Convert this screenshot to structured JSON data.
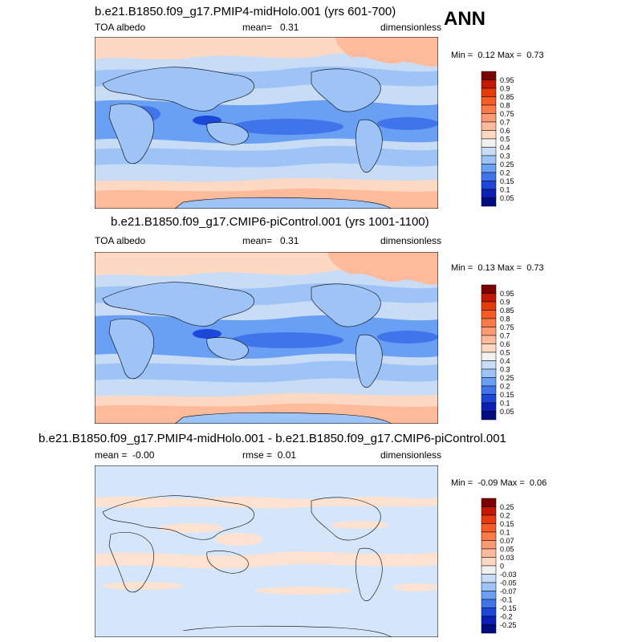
{
  "season": "ANN",
  "panels": [
    {
      "title": "b.e21.B1850.f09_g17.PMIP4-midHolo.001 (yrs 601-700)",
      "left_label": "TOA albedo",
      "mid_label": "mean=",
      "mid_value": "0.31",
      "right_label": "dimensionless",
      "min_label": "Min =",
      "min_value": "0.12",
      "max_label": "Max =",
      "max_value": "0.73",
      "colorbar": {
        "labels": [
          "0.95",
          "0.9",
          "0.85",
          "0.8",
          "0.75",
          "0.7",
          "0.6",
          "0.5",
          "0.4",
          "0.3",
          "0.25",
          "0.2",
          "0.15",
          "0.1",
          "0.05"
        ],
        "colors": [
          "#7a0000",
          "#c21800",
          "#e53a0b",
          "#f65a25",
          "#fb7a4a",
          "#fc9a74",
          "#fdbb9c",
          "#fdd8c2",
          "#f1f1f1",
          "#c9dcf6",
          "#9ec3f7",
          "#6aa0f3",
          "#3f74ea",
          "#1d47d9",
          "#0b20b4",
          "#000d80"
        ]
      }
    },
    {
      "title": "b.e21.B1850.f09_g17.CMIP6-piControl.001 (yrs 1001-1100)",
      "left_label": "TOA albedo",
      "mid_label": "mean=",
      "mid_value": "0.31",
      "right_label": "dimensionless",
      "min_label": "Min =",
      "min_value": "0.13",
      "max_label": "Max =",
      "max_value": "0.73",
      "colorbar": {
        "labels": [
          "0.95",
          "0.9",
          "0.85",
          "0.8",
          "0.75",
          "0.7",
          "0.6",
          "0.5",
          "0.4",
          "0.3",
          "0.25",
          "0.2",
          "0.15",
          "0.1",
          "0.05"
        ],
        "colors": [
          "#7a0000",
          "#c21800",
          "#e53a0b",
          "#f65a25",
          "#fb7a4a",
          "#fc9a74",
          "#fdbb9c",
          "#fdd8c2",
          "#f1f1f1",
          "#c9dcf6",
          "#9ec3f7",
          "#6aa0f3",
          "#3f74ea",
          "#1d47d9",
          "#0b20b4",
          "#000d80"
        ]
      }
    },
    {
      "title": "b.e21.B1850.f09_g17.PMIP4-midHolo.001 - b.e21.B1850.f09_g17.CMIP6-piControl.001",
      "left_label": "mean =",
      "left_value": "-0.00",
      "mid_label": "rmse =",
      "mid_value": "0.01",
      "right_label": "dimensionless",
      "min_label": "Min =",
      "min_value": "-0.09",
      "max_label": "Max =",
      "max_value": "0.06",
      "colorbar": {
        "labels": [
          "0.25",
          "0.2",
          "0.15",
          "0.1",
          "0.07",
          "0.05",
          "0.03",
          "0",
          "-0.03",
          "-0.05",
          "-0.07",
          "-0.1",
          "-0.15",
          "-0.2",
          "-0.25"
        ],
        "colors": [
          "#7a0000",
          "#c21800",
          "#e53a0b",
          "#f65a25",
          "#fb7a4a",
          "#fc9a74",
          "#fdbb9c",
          "#fdd8c2",
          "#f1f1f1",
          "#c9dcf6",
          "#9ec3f7",
          "#6aa0f3",
          "#3f74ea",
          "#1d47d9",
          "#0b20b4",
          "#000d80"
        ]
      }
    }
  ]
}
